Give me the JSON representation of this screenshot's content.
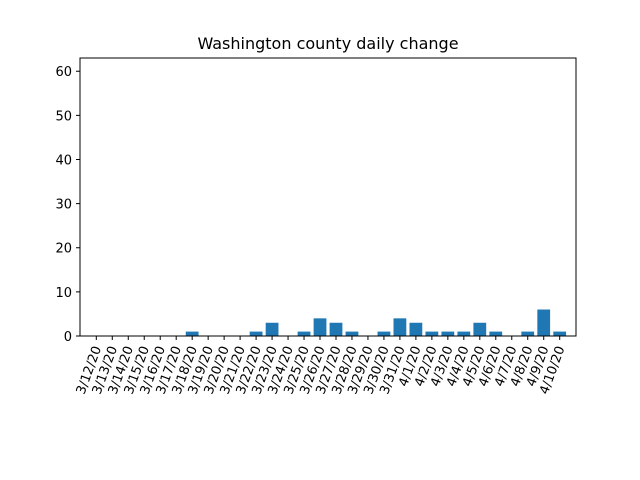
{
  "chart_data": {
    "type": "bar",
    "title": "Washington county daily change",
    "xlabel": "",
    "ylabel": "",
    "ylim": [
      0,
      63
    ],
    "yticks": [
      0,
      10,
      20,
      30,
      40,
      50,
      60
    ],
    "grid": false,
    "bar_color": "#1f77b4",
    "categories": [
      "3/12/20",
      "3/13/20",
      "3/14/20",
      "3/15/20",
      "3/16/20",
      "3/17/20",
      "3/18/20",
      "3/19/20",
      "3/20/20",
      "3/21/20",
      "3/22/20",
      "3/23/20",
      "3/24/20",
      "3/25/20",
      "3/26/20",
      "3/27/20",
      "3/28/20",
      "3/29/20",
      "3/30/20",
      "3/31/20",
      "4/1/20",
      "4/2/20",
      "4/3/20",
      "4/4/20",
      "4/5/20",
      "4/6/20",
      "4/7/20",
      "4/8/20",
      "4/9/20",
      "4/10/20"
    ],
    "values": [
      0,
      0,
      0,
      0,
      0,
      0,
      1,
      0,
      0,
      0,
      1,
      3,
      0,
      1,
      4,
      3,
      1,
      0,
      1,
      4,
      3,
      1,
      1,
      1,
      3,
      1,
      0,
      1,
      6,
      1
    ]
  }
}
